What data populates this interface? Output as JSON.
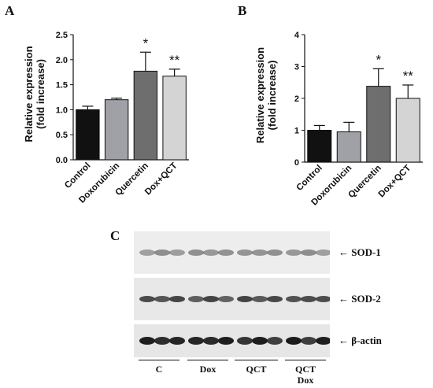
{
  "panels": {
    "a": {
      "letter": "A"
    },
    "b": {
      "letter": "B"
    },
    "c": {
      "letter": "C"
    }
  },
  "chart_data": [
    {
      "type": "bar",
      "panel": "A",
      "categories": [
        "Control",
        "Doxorubicin",
        "Quercetin",
        "Dox+QCT"
      ],
      "values": [
        1.0,
        1.2,
        1.77,
        1.67
      ],
      "errors": [
        0.07,
        0.03,
        0.38,
        0.14
      ],
      "significance": [
        "",
        "",
        "*",
        "**"
      ],
      "bar_colors": [
        "#111111",
        "#a0a0a7",
        "#6e6e6e",
        "#d4d4d4"
      ],
      "title": "",
      "xlabel": "",
      "ylabel": "Relative expression (fold increase)",
      "ylim": [
        0,
        2.5
      ],
      "yticks": [
        0.0,
        0.5,
        1.0,
        1.5,
        2.0,
        2.5
      ],
      "ytick_labels": [
        "0.0",
        "0.5",
        "1.0",
        "1.5",
        "2.0",
        "2.5"
      ],
      "grid": false
    },
    {
      "type": "bar",
      "panel": "B",
      "categories": [
        "Control",
        "Doxorubicin",
        "Quercetin",
        "Dox+QCT"
      ],
      "values": [
        1.0,
        0.95,
        2.38,
        2.0
      ],
      "errors": [
        0.15,
        0.3,
        0.55,
        0.42
      ],
      "significance": [
        "",
        "",
        "*",
        "**"
      ],
      "bar_colors": [
        "#111111",
        "#a0a0a7",
        "#6e6e6e",
        "#d4d4d4"
      ],
      "title": "",
      "xlabel": "",
      "ylabel": "Relative expression (fold increase)",
      "ylim": [
        0,
        4
      ],
      "yticks": [
        0,
        1,
        2,
        3,
        4
      ],
      "ytick_labels": [
        "0",
        "1",
        "2",
        "3",
        "4"
      ],
      "grid": false
    }
  ],
  "blot": {
    "rows": [
      {
        "label": "SOD-1",
        "intensity": "faint"
      },
      {
        "label": "SOD-2",
        "intensity": "medium"
      },
      {
        "label": "β-actin",
        "intensity": "strong"
      }
    ],
    "groups": [
      {
        "label": "C",
        "sublabel": ""
      },
      {
        "label": "Dox",
        "sublabel": ""
      },
      {
        "label": "QCT",
        "sublabel": ""
      },
      {
        "label": "QCT",
        "sublabel": "Dox"
      }
    ]
  }
}
